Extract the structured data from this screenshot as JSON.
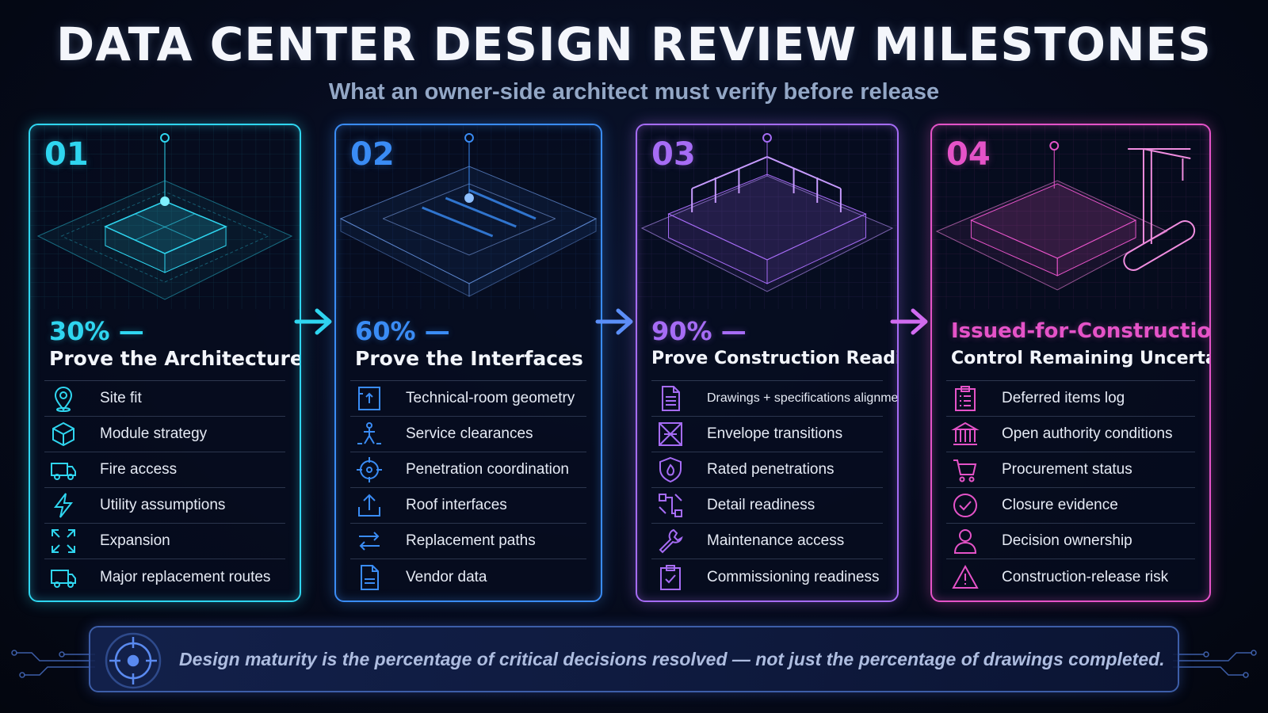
{
  "title": "DATA CENTER DESIGN REVIEW MILESTONES",
  "subtitle": "What an owner-side architect must verify before release",
  "cards": [
    {
      "number": "01",
      "stage": "30% —",
      "goal": "Prove the Architecture",
      "accent": "#2fd6f0",
      "items": [
        {
          "label": "Site fit",
          "icon": "map-pin-icon"
        },
        {
          "label": "Module strategy",
          "icon": "cube-icon"
        },
        {
          "label": "Fire access",
          "icon": "fire-truck-icon"
        },
        {
          "label": "Utility assumptions",
          "icon": "lightning-icon"
        },
        {
          "label": "Expansion",
          "icon": "expand-icon"
        },
        {
          "label": "Major replacement routes",
          "icon": "truck-icon"
        }
      ]
    },
    {
      "number": "02",
      "stage": "60% —",
      "goal": "Prove the Interfaces",
      "accent": "#3a8cf5",
      "items": [
        {
          "label": "Technical-room geometry",
          "icon": "room-icon"
        },
        {
          "label": "Service clearances",
          "icon": "person-clearance-icon"
        },
        {
          "label": "Penetration coordination",
          "icon": "crosshair-icon"
        },
        {
          "label": "Roof interfaces",
          "icon": "upload-icon"
        },
        {
          "label": "Replacement paths",
          "icon": "swap-arrows-icon"
        },
        {
          "label": "Vendor data",
          "icon": "document-icon"
        }
      ]
    },
    {
      "number": "03",
      "stage": "90% —",
      "goal": "Prove Construction Readiness",
      "accent": "#a66cf5",
      "items": [
        {
          "label": "Drawings + specifications alignment",
          "icon": "document-lines-icon"
        },
        {
          "label": "Envelope transitions",
          "icon": "envelope-icon"
        },
        {
          "label": "Rated penetrations",
          "icon": "fire-shield-icon"
        },
        {
          "label": "Detail readiness",
          "icon": "detail-icon"
        },
        {
          "label": "Maintenance access",
          "icon": "wrench-icon"
        },
        {
          "label": "Commissioning readiness",
          "icon": "clipboard-check-icon"
        }
      ]
    },
    {
      "number": "04",
      "stage": "Issued-for-Construction —",
      "goal": "Control Remaining Uncertainty",
      "accent": "#e553c8",
      "items": [
        {
          "label": "Deferred items log",
          "icon": "clipboard-list-icon"
        },
        {
          "label": "Open authority conditions",
          "icon": "government-icon"
        },
        {
          "label": "Procurement status",
          "icon": "cart-icon"
        },
        {
          "label": "Closure evidence",
          "icon": "check-circle-icon"
        },
        {
          "label": "Decision ownership",
          "icon": "user-icon"
        },
        {
          "label": "Construction-release risk",
          "icon": "warning-icon"
        }
      ]
    }
  ],
  "banner": {
    "text": "Design maturity is the percentage of critical decisions resolved — not just the percentage of drawings completed.",
    "icon": "target-icon"
  }
}
